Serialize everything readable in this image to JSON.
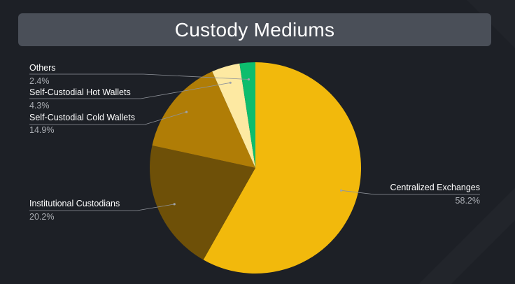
{
  "chart_data": {
    "type": "pie",
    "title": "Custody Mediums",
    "slices": [
      {
        "label": "Centralized Exchanges",
        "value": 58.2,
        "value_label": "58.2%",
        "color": "#f2b90c"
      },
      {
        "label": "Institutional Custodians",
        "value": 20.2,
        "value_label": "20.2%",
        "color": "#6e5008"
      },
      {
        "label": "Self-Custodial Cold Wallets",
        "value": 14.9,
        "value_label": "14.9%",
        "color": "#b07d06"
      },
      {
        "label": "Self-Custodial Hot Wallets",
        "value": 4.3,
        "value_label": "4.3%",
        "color": "#fde9a2"
      },
      {
        "label": "Others",
        "value": 2.4,
        "value_label": "2.4%",
        "color": "#0dbd6d"
      }
    ]
  }
}
